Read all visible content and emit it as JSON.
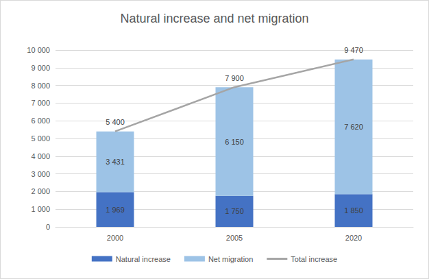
{
  "chart_data": {
    "type": "bar",
    "title": "Natural increase and net migration",
    "categories": [
      "2000",
      "2005",
      "2020"
    ],
    "stacked": true,
    "data_labels": true,
    "grid": true,
    "legend": "bottom",
    "ylim": [
      0,
      10000
    ],
    "yticks": [
      0,
      {
        "value": 1000,
        "label": "1 000"
      },
      {
        "value": 2000,
        "label": "2 000"
      },
      {
        "value": 3000,
        "label": "3 000"
      },
      {
        "value": 4000,
        "label": "4 000"
      },
      {
        "value": 5000,
        "label": "5 000"
      },
      {
        "value": 6000,
        "label": "6 000"
      },
      {
        "value": 7000,
        "label": "7 000"
      },
      {
        "value": 8000,
        "label": "8 000"
      },
      {
        "value": 9000,
        "label": "9 000"
      },
      {
        "value": 10000,
        "label": "10 000"
      }
    ],
    "series": [
      {
        "name": "Natural increase",
        "type": "bar",
        "color": "#4472c4",
        "values": [
          1969,
          1750,
          1850
        ],
        "value_labels": [
          "1 969",
          "1 750",
          "1 850"
        ]
      },
      {
        "name": "Net migration",
        "type": "bar",
        "color": "#9dc3e6",
        "values": [
          3431,
          6150,
          7620
        ],
        "value_labels": [
          "3 431",
          "6 150",
          "7 620"
        ]
      },
      {
        "name": "Total increase",
        "type": "line",
        "color": "#a5a5a5",
        "line_style": "solid",
        "values": [
          5400,
          7900,
          9470
        ],
        "value_labels": [
          "5 400",
          "7 900",
          "9 470"
        ]
      }
    ]
  }
}
